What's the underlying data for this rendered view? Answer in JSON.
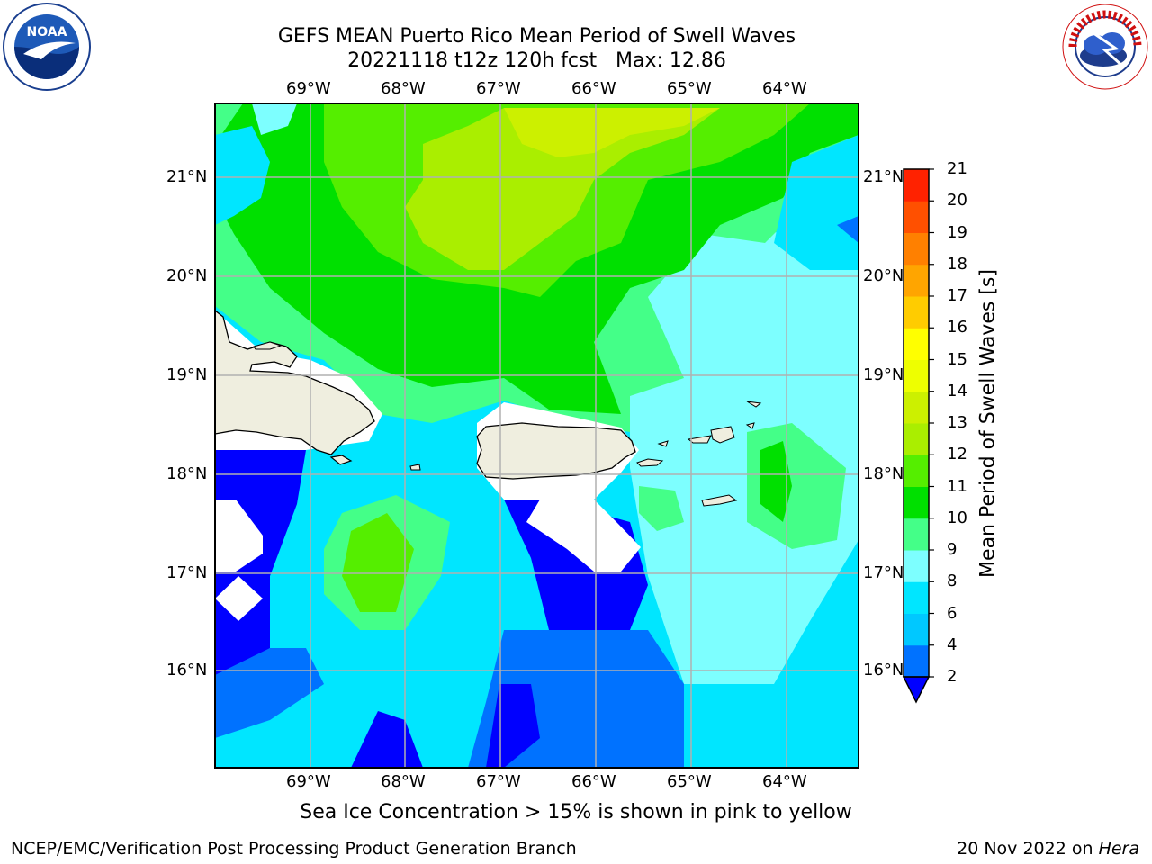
{
  "header": {
    "title_line1": "GEFS MEAN Puerto Rico Mean Period of Swell Waves",
    "title_line2": "20221118 t12z 120h fcst   Max: 12.86"
  },
  "logos": {
    "noaa": "NOAA",
    "nws": "NATIONAL WEATHER SERVICE"
  },
  "map": {
    "lon_labels": [
      "69°W",
      "68°W",
      "67°W",
      "66°W",
      "65°W",
      "64°W"
    ],
    "lat_labels": [
      "21°N",
      "20°N",
      "19°N",
      "18°N",
      "17°N",
      "16°N"
    ],
    "colors": {
      "land": "#efeedf",
      "ocean_fill": "#ffffff",
      "grid": "#b0b0b0"
    }
  },
  "colorbar": {
    "label": "Mean Period of Swell Waves [s]",
    "ticks": [
      "2",
      "4",
      "6",
      "8",
      "9",
      "10",
      "11",
      "12",
      "13",
      "14",
      "15",
      "16",
      "17",
      "18",
      "19",
      "20",
      "21"
    ],
    "colors": [
      "#0072ff",
      "#00c8ff",
      "#00e6ff",
      "#7dffff",
      "#44ff88",
      "#00e000",
      "#55ee00",
      "#aaee00",
      "#ccf000",
      "#eeff00",
      "#ffff00",
      "#ffcc00",
      "#ffa500",
      "#ff8000",
      "#ff5000",
      "#ff2200",
      "#ff0000"
    ],
    "under_color": "#0000ff"
  },
  "caption": "Sea Ice Concentration > 15% is shown in pink to yellow",
  "footer": {
    "left": "NCEP/EMC/Verification Post Processing Product Generation Branch",
    "right_date": "20 Nov 2022 on ",
    "right_host": "Hera"
  }
}
